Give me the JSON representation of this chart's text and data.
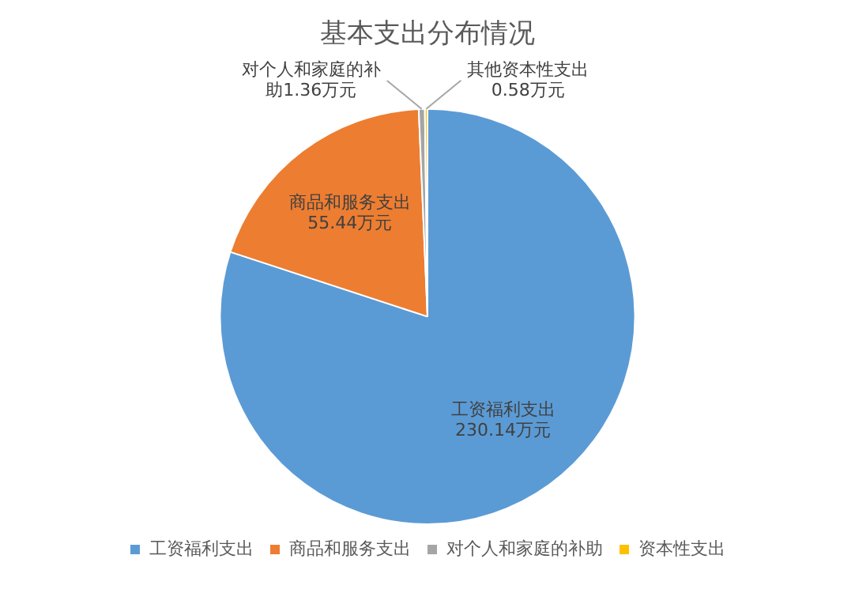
{
  "chart_data": {
    "type": "pie",
    "title": "基本支出分布情况",
    "categories": [
      "工资福利支出",
      "商品和服务支出",
      "对个人和家庭的补助",
      "资本性支出"
    ],
    "values": [
      230.14,
      55.44,
      1.36,
      0.58
    ],
    "colors": [
      "#5b9bd5",
      "#ed7d31",
      "#a5a5a5",
      "#ffc000"
    ],
    "value_labels": [
      "工资福利支出\n230.14万元",
      "商品和服务支出\n55.44万元",
      "对个人和家庭的补助1.36万元",
      "其他资本性支出\n0.58万元"
    ],
    "legend": "bottom"
  }
}
